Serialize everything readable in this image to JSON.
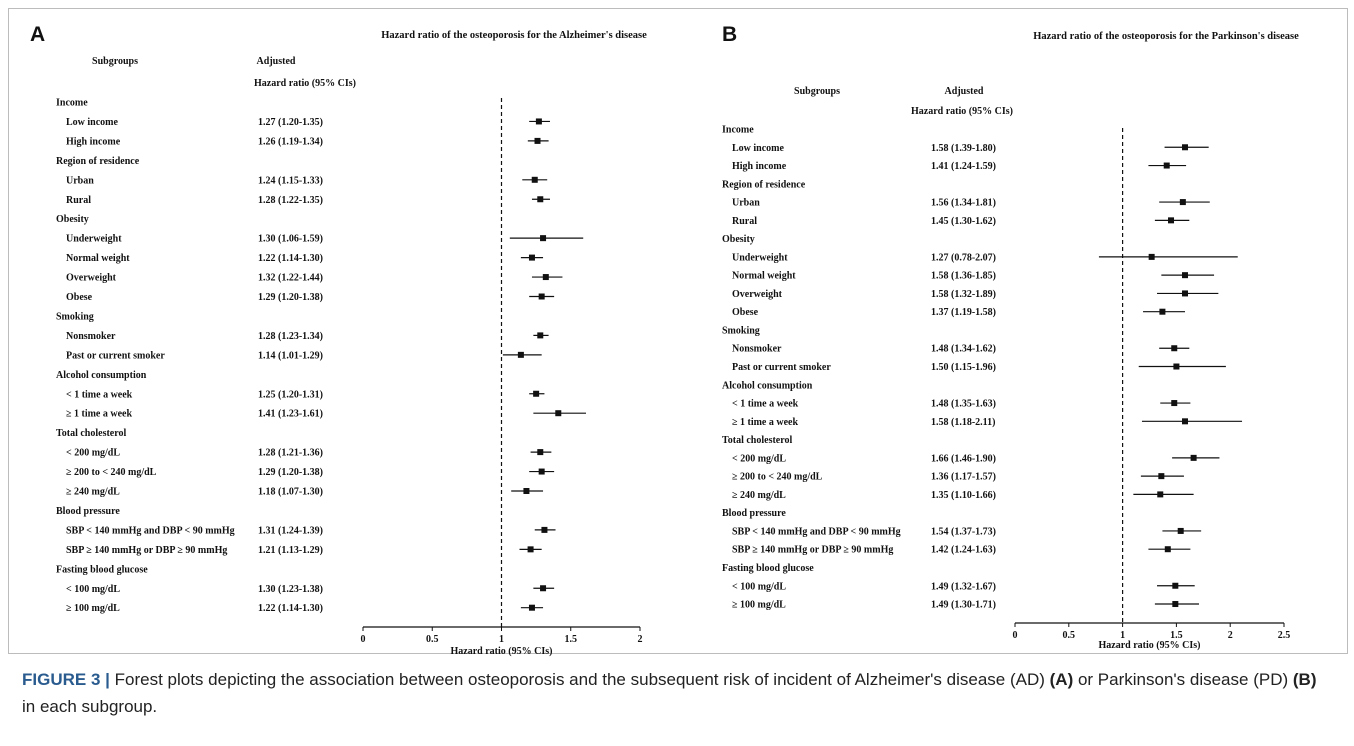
{
  "colors": {
    "ink": "#111111",
    "caption_label": "#2a5b8f",
    "frame": "#bcbcbc"
  },
  "caption": {
    "figure_label": "FIGURE 3 |",
    "part1": "Forest plots depicting the association between osteoporosis and the subsequent risk of incident of Alzheimer's disease (AD)",
    "label_a": "(A)",
    "part2": "or Parkinson's disease (PD)",
    "label_b": "(B)",
    "part3": "in each subgroup."
  },
  "chart_data": [
    {
      "type": "forest",
      "panel_label": "A",
      "title": "Hazard ratio of the osteoporosis for the Alzheimer's disease",
      "column_header_subgroups": "Subgroups",
      "column_header_adjusted": "Adjusted",
      "column_header_hr": "Hazard ratio (95% CIs)",
      "xlabel": "Hazard ratio (95% CIs)",
      "xlim": [
        0,
        2
      ],
      "xticks": [
        "0",
        "0.5",
        "1",
        "1.5",
        "2"
      ],
      "reference_line": 1,
      "rows": [
        {
          "label": "Income",
          "header": true
        },
        {
          "label": "Low income",
          "est": 1.27,
          "lo": 1.2,
          "hi": 1.35,
          "text": "1.27 (1.20-1.35)"
        },
        {
          "label": "High income",
          "est": 1.26,
          "lo": 1.19,
          "hi": 1.34,
          "text": "1.26 (1.19-1.34)"
        },
        {
          "label": "Region of residence",
          "header": true
        },
        {
          "label": "Urban",
          "est": 1.24,
          "lo": 1.15,
          "hi": 1.33,
          "text": "1.24 (1.15-1.33)"
        },
        {
          "label": "Rural",
          "est": 1.28,
          "lo": 1.22,
          "hi": 1.35,
          "text": "1.28 (1.22-1.35)"
        },
        {
          "label": "Obesity",
          "header": true
        },
        {
          "label": "Underweight",
          "est": 1.3,
          "lo": 1.06,
          "hi": 1.59,
          "text": "1.30 (1.06-1.59)"
        },
        {
          "label": "Normal weight",
          "est": 1.22,
          "lo": 1.14,
          "hi": 1.3,
          "text": "1.22 (1.14-1.30)"
        },
        {
          "label": "Overweight",
          "est": 1.32,
          "lo": 1.22,
          "hi": 1.44,
          "text": "1.32 (1.22-1.44)"
        },
        {
          "label": "Obese",
          "est": 1.29,
          "lo": 1.2,
          "hi": 1.38,
          "text": "1.29 (1.20-1.38)"
        },
        {
          "label": "Smoking",
          "header": true
        },
        {
          "label": "Nonsmoker",
          "est": 1.28,
          "lo": 1.23,
          "hi": 1.34,
          "text": "1.28 (1.23-1.34)"
        },
        {
          "label": "Past or current smoker",
          "est": 1.14,
          "lo": 1.01,
          "hi": 1.29,
          "text": "1.14 (1.01-1.29)"
        },
        {
          "label": "Alcohol consumption",
          "header": true
        },
        {
          "label": "< 1 time a week",
          "est": 1.25,
          "lo": 1.2,
          "hi": 1.31,
          "text": "1.25 (1.20-1.31)"
        },
        {
          "label": "≥ 1 time a week",
          "est": 1.41,
          "lo": 1.23,
          "hi": 1.61,
          "text": "1.41 (1.23-1.61)"
        },
        {
          "label": "Total cholesterol",
          "header": true
        },
        {
          "label": "< 200 mg/dL",
          "est": 1.28,
          "lo": 1.21,
          "hi": 1.36,
          "text": "1.28 (1.21-1.36)"
        },
        {
          "label": "≥ 200 to < 240 mg/dL",
          "est": 1.29,
          "lo": 1.2,
          "hi": 1.38,
          "text": "1.29 (1.20-1.38)"
        },
        {
          "label": "≥ 240 mg/dL",
          "est": 1.18,
          "lo": 1.07,
          "hi": 1.3,
          "text": "1.18 (1.07-1.30)"
        },
        {
          "label": "Blood pressure",
          "header": true
        },
        {
          "label": "SBP < 140 mmHg and DBP < 90 mmHg",
          "est": 1.31,
          "lo": 1.24,
          "hi": 1.39,
          "text": "1.31 (1.24-1.39)"
        },
        {
          "label": "SBP ≥ 140 mmHg or DBP ≥ 90 mmHg",
          "est": 1.21,
          "lo": 1.13,
          "hi": 1.29,
          "text": "1.21 (1.13-1.29)"
        },
        {
          "label": "Fasting blood glucose",
          "header": true
        },
        {
          "label": "< 100 mg/dL",
          "est": 1.3,
          "lo": 1.23,
          "hi": 1.38,
          "text": "1.30 (1.23-1.38)"
        },
        {
          "label": "≥ 100 mg/dL",
          "est": 1.22,
          "lo": 1.14,
          "hi": 1.3,
          "text": "1.22 (1.14-1.30)"
        }
      ]
    },
    {
      "type": "forest",
      "panel_label": "B",
      "title": "Hazard ratio of the osteoporosis for the Parkinson's disease",
      "column_header_subgroups": "Subgroups",
      "column_header_adjusted": "Adjusted",
      "column_header_hr": "Hazard ratio (95% CIs)",
      "xlabel": "Hazard ratio (95% CIs)",
      "xlim": [
        0,
        2.5
      ],
      "xticks": [
        "0",
        "0.5",
        "1",
        "1.5",
        "2",
        "2.5"
      ],
      "reference_line": 1,
      "rows": [
        {
          "label": "Income",
          "header": true
        },
        {
          "label": "Low income",
          "est": 1.58,
          "lo": 1.39,
          "hi": 1.8,
          "text": "1.58 (1.39-1.80)"
        },
        {
          "label": "High income",
          "est": 1.41,
          "lo": 1.24,
          "hi": 1.59,
          "text": "1.41 (1.24-1.59)"
        },
        {
          "label": "Region of residence",
          "header": true
        },
        {
          "label": "Urban",
          "est": 1.56,
          "lo": 1.34,
          "hi": 1.81,
          "text": "1.56 (1.34-1.81)"
        },
        {
          "label": "Rural",
          "est": 1.45,
          "lo": 1.3,
          "hi": 1.62,
          "text": "1.45 (1.30-1.62)"
        },
        {
          "label": "Obesity",
          "header": true
        },
        {
          "label": "Underweight",
          "est": 1.27,
          "lo": 0.78,
          "hi": 2.07,
          "text": "1.27 (0.78-2.07)"
        },
        {
          "label": "Normal weight",
          "est": 1.58,
          "lo": 1.36,
          "hi": 1.85,
          "text": "1.58 (1.36-1.85)"
        },
        {
          "label": "Overweight",
          "est": 1.58,
          "lo": 1.32,
          "hi": 1.89,
          "text": "1.58 (1.32-1.89)"
        },
        {
          "label": "Obese",
          "est": 1.37,
          "lo": 1.19,
          "hi": 1.58,
          "text": "1.37 (1.19-1.58)"
        },
        {
          "label": "Smoking",
          "header": true
        },
        {
          "label": "Nonsmoker",
          "est": 1.48,
          "lo": 1.34,
          "hi": 1.62,
          "text": "1.48 (1.34-1.62)"
        },
        {
          "label": "Past or current smoker",
          "est": 1.5,
          "lo": 1.15,
          "hi": 1.96,
          "text": "1.50 (1.15-1.96)"
        },
        {
          "label": "Alcohol consumption",
          "header": true
        },
        {
          "label": "< 1 time a week",
          "est": 1.48,
          "lo": 1.35,
          "hi": 1.63,
          "text": "1.48 (1.35-1.63)"
        },
        {
          "label": "≥ 1 time a week",
          "est": 1.58,
          "lo": 1.18,
          "hi": 2.11,
          "text": "1.58 (1.18-2.11)"
        },
        {
          "label": "Total cholesterol",
          "header": true
        },
        {
          "label": "< 200 mg/dL",
          "est": 1.66,
          "lo": 1.46,
          "hi": 1.9,
          "text": "1.66 (1.46-1.90)"
        },
        {
          "label": "≥ 200 to < 240 mg/dL",
          "est": 1.36,
          "lo": 1.17,
          "hi": 1.57,
          "text": "1.36 (1.17-1.57)"
        },
        {
          "label": "≥ 240 mg/dL",
          "est": 1.35,
          "lo": 1.1,
          "hi": 1.66,
          "text": "1.35 (1.10-1.66)"
        },
        {
          "label": "Blood pressure",
          "header": true
        },
        {
          "label": "SBP < 140 mmHg and DBP < 90 mmHg",
          "est": 1.54,
          "lo": 1.37,
          "hi": 1.73,
          "text": "1.54 (1.37-1.73)"
        },
        {
          "label": "SBP ≥ 140 mmHg or DBP ≥ 90 mmHg",
          "est": 1.42,
          "lo": 1.24,
          "hi": 1.63,
          "text": "1.42 (1.24-1.63)"
        },
        {
          "label": "Fasting blood glucose",
          "header": true
        },
        {
          "label": "< 100 mg/dL",
          "est": 1.49,
          "lo": 1.32,
          "hi": 1.67,
          "text": "1.49 (1.32-1.67)"
        },
        {
          "label": "≥ 100 mg/dL",
          "est": 1.49,
          "lo": 1.3,
          "hi": 1.71,
          "text": "1.49 (1.30-1.71)"
        }
      ]
    }
  ]
}
